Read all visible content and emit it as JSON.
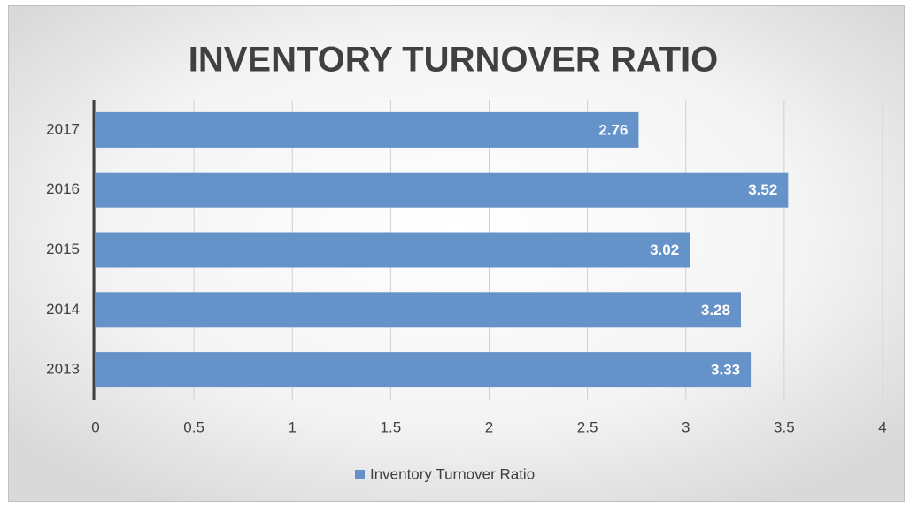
{
  "chart_data": {
    "type": "bar",
    "orientation": "horizontal",
    "title": "INVENTORY TURNOVER RATIO",
    "categories": [
      "2013",
      "2014",
      "2015",
      "2016",
      "2017"
    ],
    "series": [
      {
        "name": "Inventory Turnover Ratio",
        "color": "#6592c8",
        "values": [
          3.33,
          3.28,
          3.02,
          3.52,
          2.76
        ]
      }
    ],
    "xlim": [
      0,
      4
    ],
    "xticks": [
      0,
      0.5,
      1,
      1.5,
      2,
      2.5,
      3,
      3.5,
      4
    ],
    "grid": true,
    "legend": "bottom"
  }
}
